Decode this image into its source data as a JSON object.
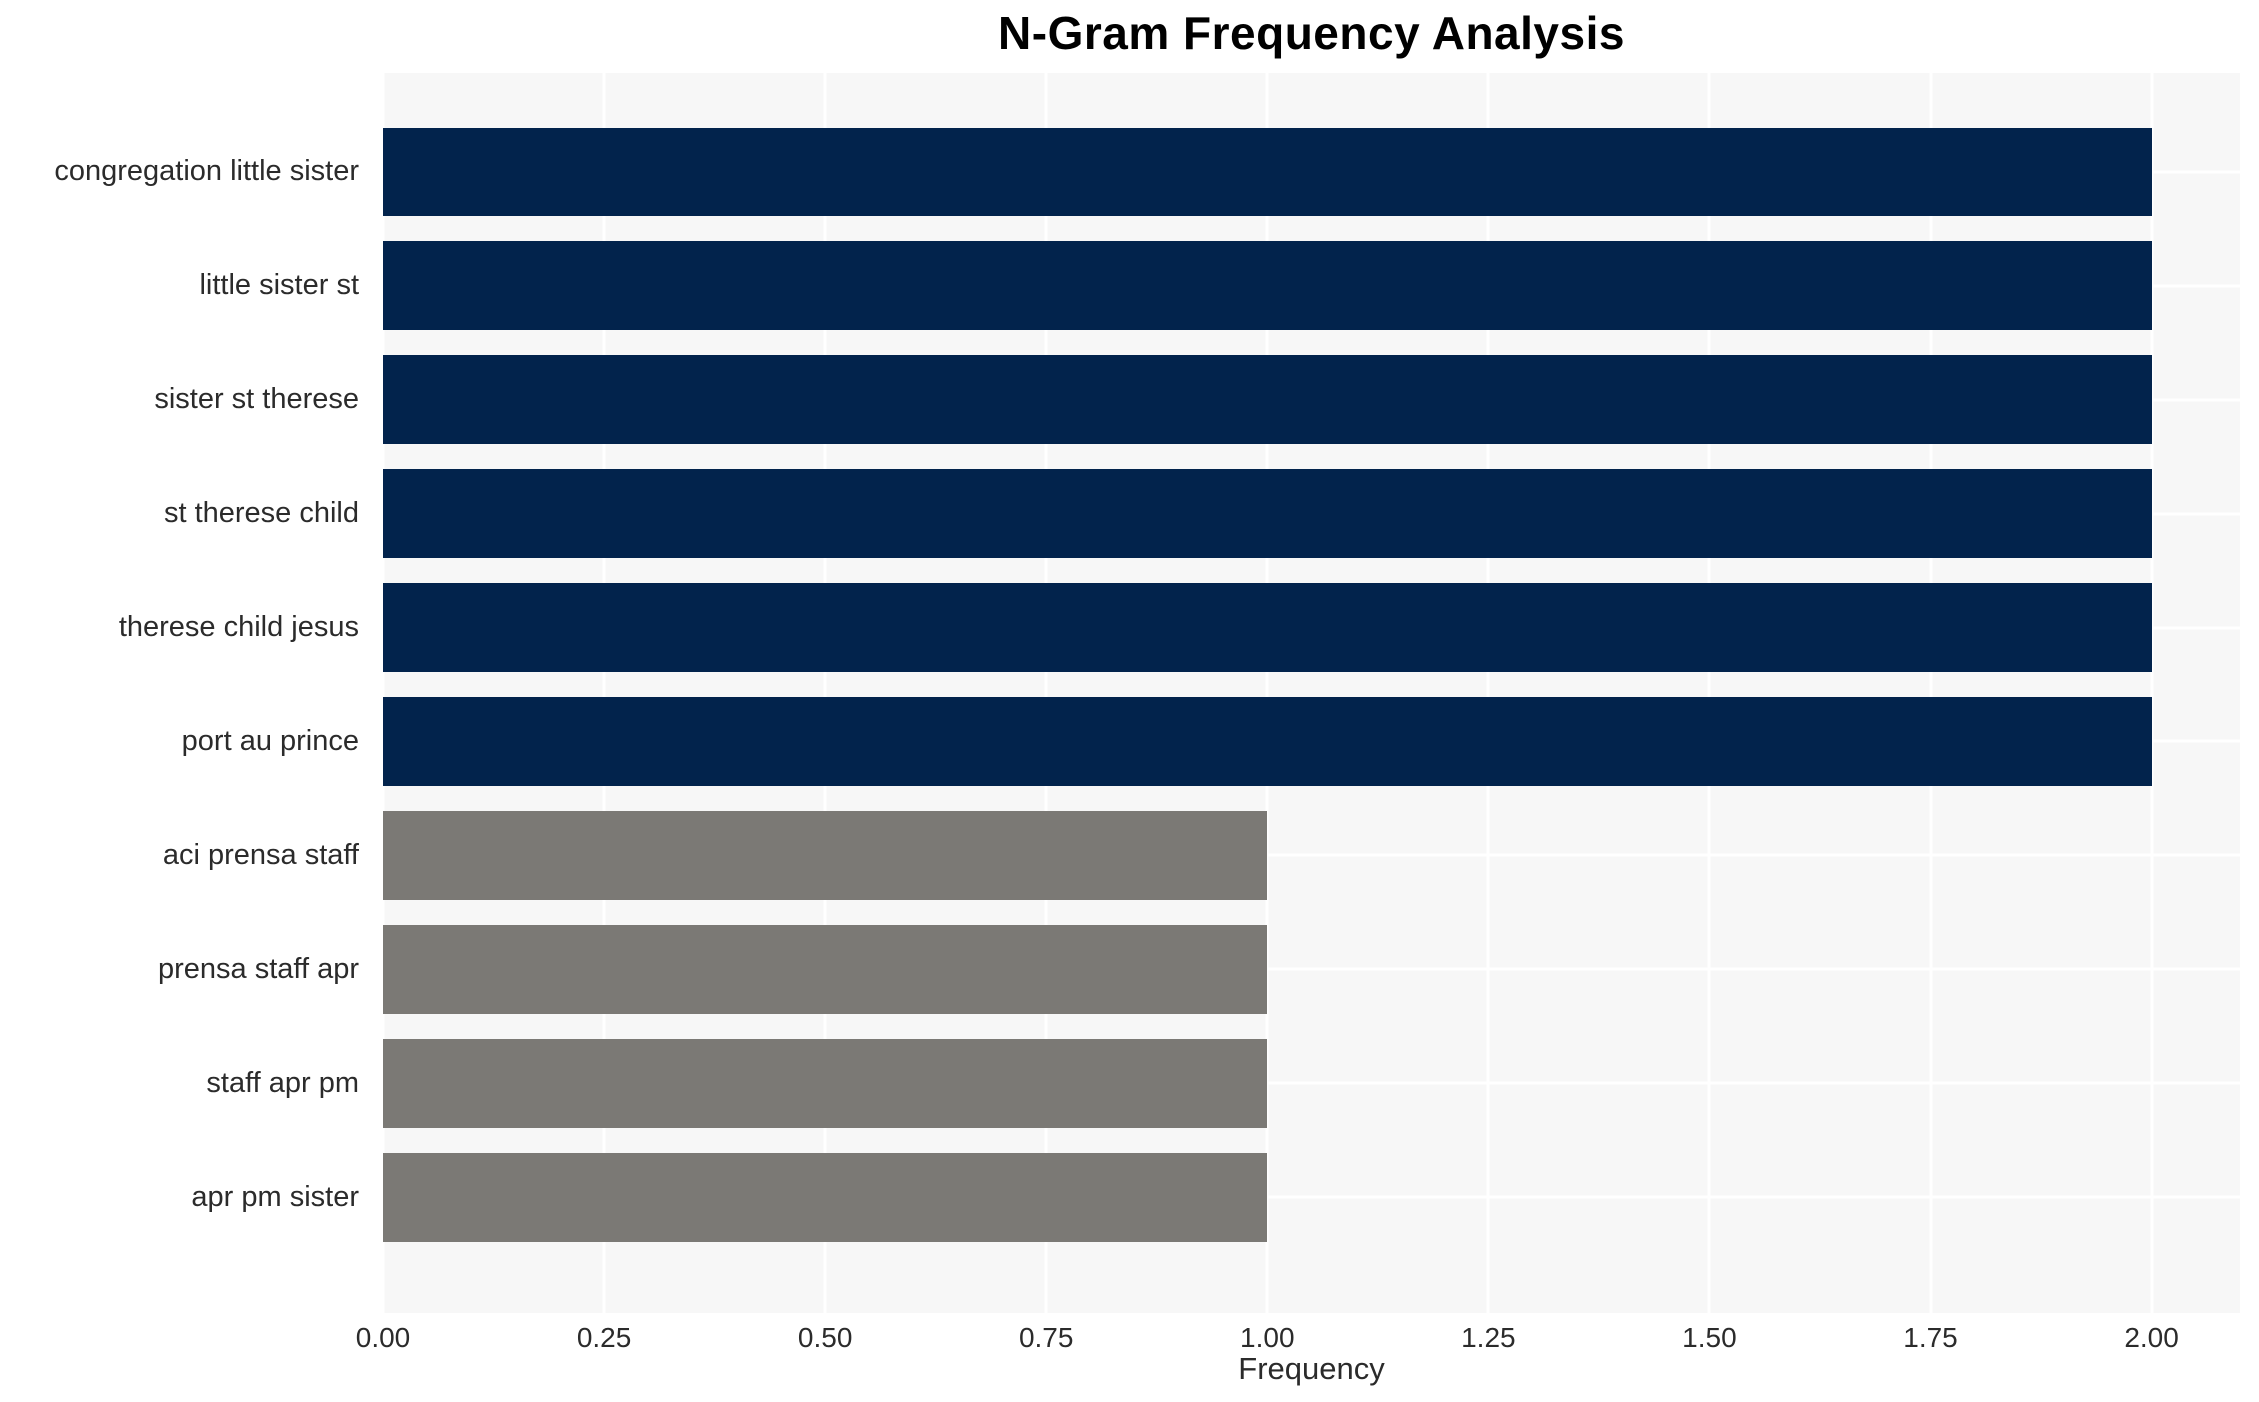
{
  "chart_data": {
    "type": "bar",
    "orientation": "horizontal",
    "title": "N-Gram Frequency Analysis",
    "xlabel": "Frequency",
    "ylabel": "",
    "categories": [
      "congregation little sister",
      "little sister st",
      "sister st therese",
      "st therese child",
      "therese child jesus",
      "port au prince",
      "aci prensa staff",
      "prensa staff apr",
      "staff apr pm",
      "apr pm sister"
    ],
    "values": [
      2,
      2,
      2,
      2,
      2,
      2,
      1,
      1,
      1,
      1
    ],
    "bar_colors": [
      "#02234c",
      "#02234c",
      "#02234c",
      "#02234c",
      "#02234c",
      "#02234c",
      "#7b7975",
      "#7b7975",
      "#7b7975",
      "#7b7975"
    ],
    "xlim": [
      0,
      2.1
    ],
    "xticks": [
      0,
      0.25,
      0.5,
      0.75,
      1.0,
      1.25,
      1.5,
      1.75,
      2.0
    ],
    "xtick_labels": [
      "0.00",
      "0.25",
      "0.50",
      "0.75",
      "1.00",
      "1.25",
      "1.50",
      "1.75",
      "2.00"
    ],
    "grid": true,
    "legend_position": "none"
  },
  "style": {
    "plot_background": "#f7f7f7",
    "grid_color": "#ffffff",
    "text_color": "#2b2b2b",
    "title_color": "#000000",
    "page_background": "#ffffff"
  }
}
